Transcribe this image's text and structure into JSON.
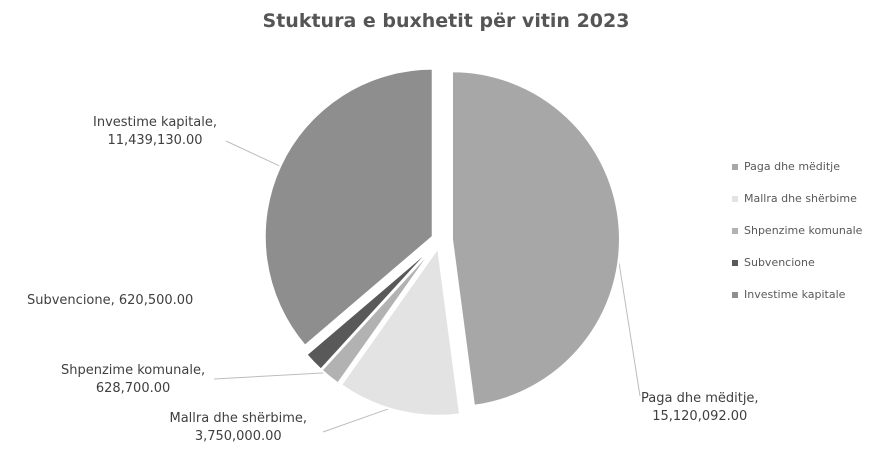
{
  "chart_data": {
    "type": "pie",
    "title": "Stuktura e buxhetit për vitin 2023",
    "categories": [
      "Paga dhe mëditje",
      "Mallra dhe shërbime",
      "Shpenzime komunale",
      "Subvencione",
      "Investime kapitale"
    ],
    "values": [
      15120092.0,
      3750000.0,
      628700.0,
      620500.0,
      11439130.0
    ],
    "data_labels": [
      [
        "Paga dhe mëditje,",
        "15,120,092.00"
      ],
      [
        "Mallra dhe shërbime,",
        "3,750,000.00"
      ],
      [
        "Shpenzime komunale,",
        "628,700.00"
      ],
      [
        "Subvencione, 620,500.00"
      ],
      [
        "Investime kapitale,",
        "11,439,130.00"
      ]
    ],
    "colors": [
      "#a7a7a7",
      "#e3e3e3",
      "#b2b2b2",
      "#595959",
      "#8e8e8e"
    ],
    "legend_position": "right",
    "exploded": true
  }
}
